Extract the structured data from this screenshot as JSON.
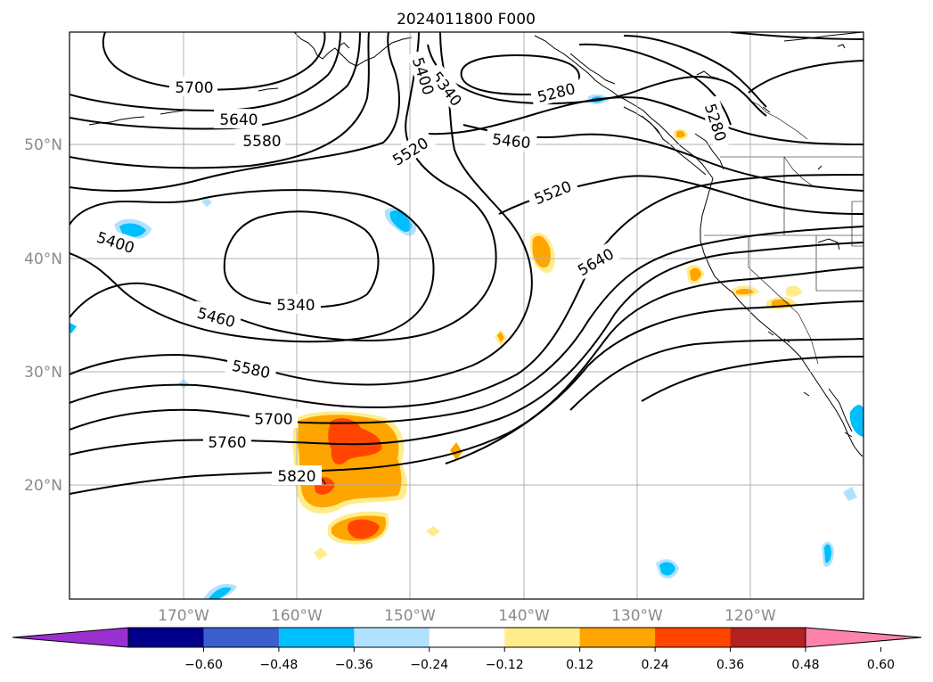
{
  "title": "2024011800 F000",
  "lat_ticks": [
    "50°N",
    "40°N",
    "30°N",
    "20°N"
  ],
  "lon_ticks": [
    "170°W",
    "160°W",
    "150°W",
    "140°W",
    "130°W",
    "120°W"
  ],
  "contour_labels": [
    "5700",
    "5640",
    "5580",
    "5400",
    "5340",
    "5460",
    "5580",
    "5700",
    "5760",
    "5820",
    "5520",
    "5460",
    "5280",
    "5520",
    "5640",
    "5280",
    "5340",
    "5400"
  ],
  "colorbar": {
    "ticks": [
      "−0.60",
      "−0.48",
      "−0.36",
      "−0.24",
      "−0.12",
      "0.12",
      "0.24",
      "0.36",
      "0.48",
      "0.60"
    ],
    "colors": [
      "#9b30d0",
      "#00008b",
      "#3a5fcd",
      "#00bfff",
      "#b0e2ff",
      "#ffffff",
      "#ffec8b",
      "#ffa500",
      "#ff4500",
      "#b22222",
      "#ff82ab"
    ]
  }
}
